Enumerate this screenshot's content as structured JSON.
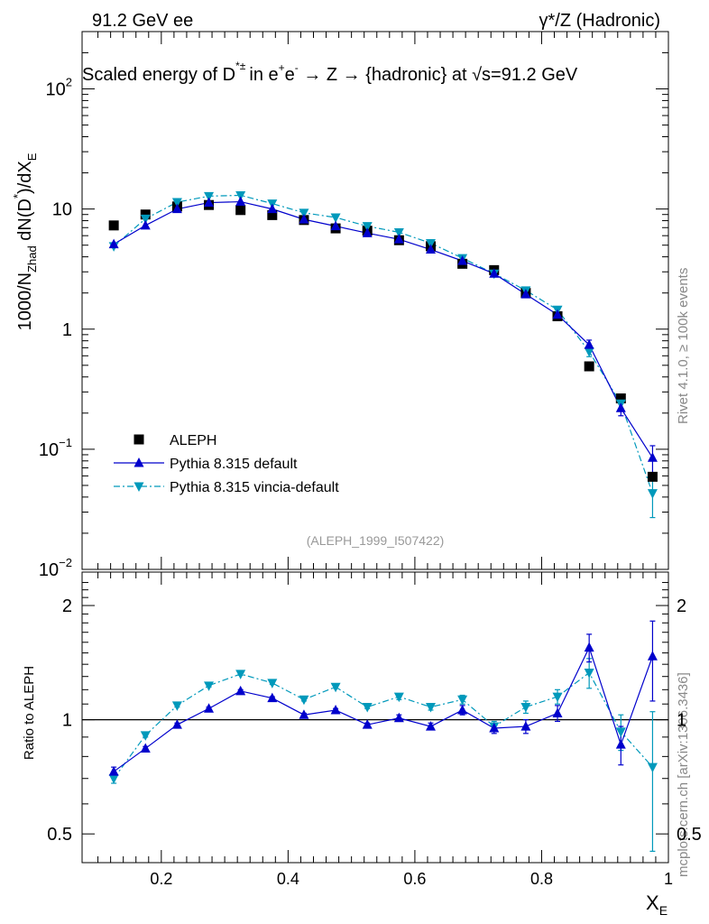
{
  "header": {
    "left": "91.2 GeV ee",
    "right": "γ*/Z (Hadronic)"
  },
  "side": {
    "rivet": "Rivet 4.1.0, ≥ 100k events",
    "mcplots": "mcplots.cern.ch [arXiv:1306.3436]"
  },
  "colors": {
    "aleph": "#000000",
    "pythia_default": "#0000cc",
    "pythia_vincia": "#0099bb",
    "watermark": "#999999"
  },
  "chart_data": [
    {
      "panel": "main",
      "type": "scatter",
      "title": "Scaled energy of D*± in e+e- → Z → {hadronic} at √s=91.2 GeV",
      "title_parts": {
        "a": "Scaled energy of D",
        "b": "in e",
        "c": "e",
        "d": " →  Z → {hadronic} at √s=91.2 GeV",
        "sup_d": "*±",
        "sup_e1": "+",
        "sup_e2": "-"
      },
      "ylabel": "1000/N_Zhad dN(D*)/dX_E",
      "ylabel_parts": {
        "a": "1000/N",
        "sub": "Zhad",
        "b": " dN(D",
        "sup": "*",
        "c": ")/dX",
        "sub2": "E"
      },
      "yscale": "log",
      "ylim": [
        0.01,
        300
      ],
      "xlim": [
        0.075,
        1.0
      ],
      "y_ticks": [
        {
          "v": 0.01,
          "base": "10",
          "exp": "−2"
        },
        {
          "v": 0.1,
          "base": "10",
          "exp": "−1"
        },
        {
          "v": 1,
          "base": "1",
          "exp": ""
        },
        {
          "v": 10,
          "base": "10",
          "exp": ""
        },
        {
          "v": 100,
          "base": "10",
          "exp": "2"
        }
      ],
      "watermark": "(ALEPH_1999_I507422)",
      "legend": [
        {
          "key": "ALEPH",
          "label": "ALEPH"
        },
        {
          "key": "default",
          "label": "Pythia 8.315 default"
        },
        {
          "key": "vincia",
          "label": "Pythia 8.315 vincia-default"
        }
      ],
      "x": [
        0.125,
        0.175,
        0.225,
        0.275,
        0.325,
        0.375,
        0.425,
        0.475,
        0.525,
        0.575,
        0.625,
        0.675,
        0.725,
        0.775,
        0.825,
        0.875,
        0.925,
        0.975
      ],
      "series": [
        {
          "name": "ALEPH",
          "values": [
            7.3,
            9.0,
            10.5,
            10.8,
            9.8,
            8.9,
            8.1,
            6.9,
            6.6,
            5.5,
            4.9,
            3.5,
            3.1,
            2.0,
            1.28,
            0.49,
            0.265,
            0.059
          ]
        },
        {
          "name": "Pythia 8.315 default",
          "values": [
            5.1,
            7.3,
            10.0,
            11.3,
            11.5,
            10.0,
            8.2,
            7.2,
            6.3,
            5.6,
            4.6,
            3.7,
            2.9,
            1.95,
            1.32,
            0.74,
            0.22,
            0.085
          ],
          "err": [
            0,
            0,
            0,
            0,
            0,
            0,
            0,
            0,
            0,
            0,
            0,
            0,
            0,
            0,
            0,
            0.07,
            0.03,
            0.022
          ]
        },
        {
          "name": "Pythia 8.315 vincia-default",
          "values": [
            4.9,
            8.3,
            11.4,
            12.8,
            13.0,
            11.1,
            9.3,
            8.5,
            7.2,
            6.4,
            5.2,
            3.9,
            2.9,
            2.1,
            1.45,
            0.65,
            0.24,
            0.043
          ],
          "err": [
            0,
            0,
            0,
            0,
            0,
            0,
            0,
            0,
            0,
            0,
            0,
            0,
            0,
            0,
            0,
            0.06,
            0.03,
            0.016
          ]
        }
      ]
    },
    {
      "panel": "ratio",
      "type": "line",
      "ylabel": "Ratio to ALEPH",
      "xlabel": "X_E",
      "xlabel_parts": {
        "a": "X",
        "sub": "E"
      },
      "yscale": "log",
      "ylim": [
        0.42,
        2.45
      ],
      "xlim": [
        0.075,
        1.0
      ],
      "y_ticks": [
        0.5,
        1,
        2
      ],
      "y_tick_labels": [
        "0.5",
        "1",
        "2"
      ],
      "x_ticks": [
        0.2,
        0.4,
        0.6,
        0.8,
        1.0
      ],
      "x_tick_labels": [
        "0.2",
        "0.4",
        "0.6",
        "0.8",
        "1"
      ],
      "reference": 1.0,
      "x": [
        0.125,
        0.175,
        0.225,
        0.275,
        0.325,
        0.375,
        0.425,
        0.475,
        0.525,
        0.575,
        0.625,
        0.675,
        0.725,
        0.775,
        0.825,
        0.875,
        0.925,
        0.975
      ],
      "series": [
        {
          "name": "Pythia 8.315 default",
          "values": [
            0.73,
            0.84,
            0.97,
            1.07,
            1.19,
            1.14,
            1.03,
            1.06,
            0.97,
            1.01,
            0.96,
            1.06,
            0.95,
            0.96,
            1.04,
            1.55,
            0.86,
            1.47
          ],
          "err": [
            0.02,
            0.01,
            0.01,
            0.01,
            0.01,
            0.01,
            0.01,
            0.01,
            0.01,
            0.02,
            0.02,
            0.03,
            0.03,
            0.04,
            0.05,
            0.13,
            0.1,
            0.35
          ]
        },
        {
          "name": "Pythia 8.315 vincia-default",
          "values": [
            0.7,
            0.91,
            1.09,
            1.23,
            1.32,
            1.25,
            1.13,
            1.22,
            1.08,
            1.15,
            1.08,
            1.13,
            0.96,
            1.08,
            1.15,
            1.33,
            0.93,
            0.75
          ],
          "err": [
            0.02,
            0.01,
            0.01,
            0.01,
            0.01,
            0.01,
            0.01,
            0.01,
            0.01,
            0.02,
            0.02,
            0.03,
            0.03,
            0.04,
            0.05,
            0.12,
            0.1,
            0.3
          ]
        }
      ]
    }
  ]
}
